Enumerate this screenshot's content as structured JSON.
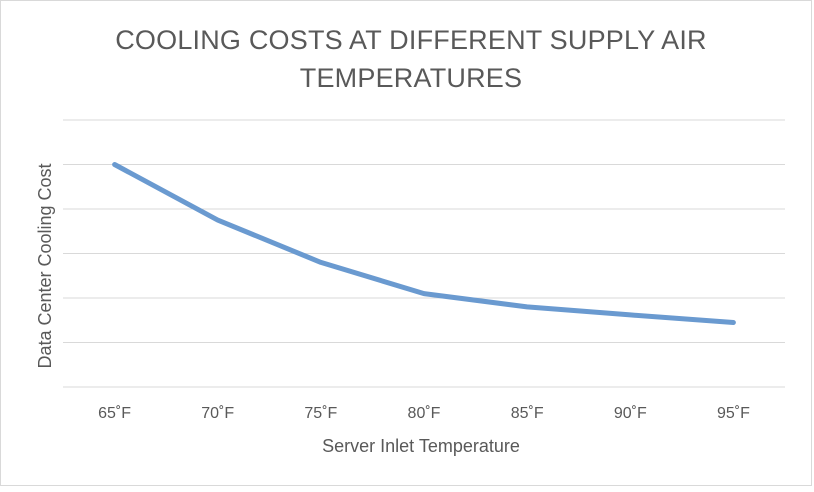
{
  "chart_data": {
    "type": "line",
    "title": "COOLING COSTS AT DIFFERENT  SUPPLY AIR TEMPERATURES",
    "xlabel": "Server Inlet Temperature",
    "ylabel": "Data Center Cooling Cost",
    "categories": [
      "65˚F",
      "70˚F",
      "75˚F",
      "80˚F",
      "85˚F",
      "90˚F",
      "95˚F"
    ],
    "series": [
      {
        "values": [
          5.0,
          3.75,
          2.8,
          2.1,
          1.8,
          1.62,
          1.45
        ],
        "color": "#6a9ad0"
      }
    ],
    "ylim": [
      0,
      6
    ],
    "y_ticks_labeled": false,
    "gridlines": true,
    "legend": "none"
  }
}
